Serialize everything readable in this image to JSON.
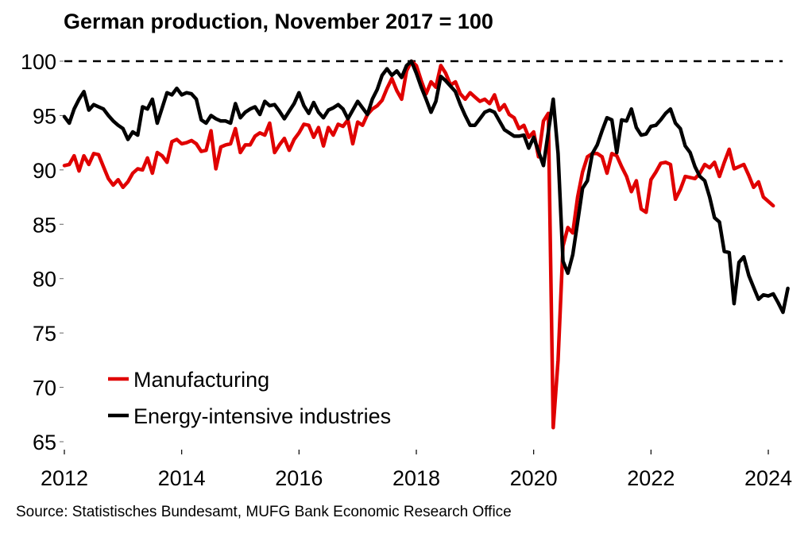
{
  "chart_data": {
    "type": "line",
    "title": "German production, November 2017 = 100",
    "source": "Source: Statistisches Bundesamt, MUFG Bank Economic Research Office",
    "xlabel": "",
    "ylabel": "",
    "x_start": "2012-01",
    "frequency": "monthly",
    "xlim": [
      2012,
      2024
    ],
    "ylim": [
      65,
      100
    ],
    "xticks": [
      "2012",
      "2014",
      "2016",
      "2018",
      "2020",
      "2022",
      "2024"
    ],
    "yticks": [
      "65",
      "70",
      "75",
      "80",
      "85",
      "90",
      "95",
      "100"
    ],
    "reference_line": {
      "value": 100,
      "style": "dashed"
    },
    "grid": false,
    "legend_position": "bottom-left",
    "series": [
      {
        "name": "Manufacturing",
        "color": "#e00000",
        "values": [
          90.4,
          90.5,
          91.3,
          89.9,
          91.3,
          90.5,
          91.5,
          91.4,
          90.3,
          89.2,
          88.6,
          89.1,
          88.4,
          88.9,
          89.7,
          90.1,
          90.0,
          91.1,
          89.7,
          91.6,
          91.3,
          90.7,
          92.6,
          92.8,
          92.4,
          92.5,
          92.7,
          92.4,
          91.7,
          91.8,
          93.6,
          90.1,
          92.1,
          92.3,
          92.4,
          93.8,
          91.6,
          92.3,
          92.3,
          93.1,
          93.4,
          93.2,
          94.3,
          91.6,
          92.3,
          92.9,
          91.8,
          92.8,
          93.4,
          94.2,
          94.1,
          93.0,
          93.9,
          92.2,
          93.9,
          93.2,
          94.2,
          94.0,
          94.6,
          92.4,
          94.4,
          94.1,
          95.1,
          95.6,
          95.9,
          96.4,
          97.5,
          98.4,
          97.3,
          96.5,
          99.1,
          100.0,
          99.6,
          98.2,
          97.0,
          98.1,
          97.6,
          99.6,
          98.9,
          97.8,
          98.1,
          97.0,
          96.5,
          97.1,
          96.7,
          96.3,
          96.5,
          96.1,
          96.9,
          95.5,
          96.0,
          95.1,
          94.8,
          93.8,
          94.1,
          93.0,
          93.5,
          91.2,
          94.5,
          95.2,
          66.3,
          72.5,
          83.0,
          84.7,
          84.2,
          87.5,
          89.8,
          91.2,
          91.5,
          91.5,
          91.2,
          89.7,
          91.5,
          91.3,
          90.3,
          89.4,
          88.0,
          89.0,
          86.4,
          86.1,
          89.1,
          89.8,
          90.6,
          90.7,
          90.5,
          87.3,
          88.2,
          89.4,
          89.3,
          89.2,
          89.7,
          90.5,
          90.2,
          90.7,
          89.4,
          90.7,
          91.9,
          90.1,
          90.3,
          90.5,
          89.5,
          88.4,
          88.9,
          87.5,
          87.1,
          86.7
        ]
      },
      {
        "name": "Energy-intensive industries",
        "color": "#000000",
        "values": [
          94.9,
          94.3,
          95.6,
          96.5,
          97.2,
          95.5,
          96.0,
          95.8,
          95.6,
          95.0,
          94.5,
          94.1,
          93.8,
          92.8,
          93.5,
          93.2,
          95.8,
          95.6,
          96.5,
          94.3,
          95.7,
          97.1,
          96.9,
          97.5,
          96.9,
          97.1,
          97.0,
          96.5,
          94.6,
          94.3,
          95.0,
          94.7,
          94.5,
          94.5,
          94.3,
          96.1,
          94.8,
          95.3,
          95.6,
          95.8,
          95.1,
          96.3,
          95.9,
          96.0,
          95.4,
          94.7,
          95.4,
          96.1,
          97.1,
          95.9,
          95.2,
          96.2,
          95.3,
          94.8,
          95.5,
          95.7,
          96.0,
          95.6,
          94.7,
          95.5,
          96.3,
          95.7,
          95.1,
          96.5,
          97.4,
          98.7,
          99.3,
          98.7,
          99.1,
          98.5,
          99.6,
          100.0,
          98.9,
          97.6,
          96.5,
          95.3,
          96.3,
          98.6,
          98.2,
          97.7,
          97.2,
          96.0,
          95.0,
          94.1,
          94.1,
          94.7,
          95.3,
          95.5,
          95.3,
          94.5,
          93.7,
          93.4,
          93.1,
          93.1,
          93.2,
          92.0,
          93.0,
          91.7,
          90.4,
          93.5,
          96.5,
          91.5,
          81.6,
          80.5,
          82.2,
          85.2,
          88.3,
          89.0,
          91.5,
          92.3,
          93.6,
          94.8,
          94.6,
          91.6,
          94.6,
          94.5,
          95.6,
          93.9,
          93.2,
          93.3,
          94.0,
          94.1,
          94.6,
          95.2,
          95.6,
          94.3,
          93.8,
          92.2,
          91.6,
          90.3,
          89.4,
          89.0,
          87.5,
          85.6,
          85.2,
          82.5,
          82.4,
          77.7,
          81.5,
          82.0,
          80.3,
          79.2,
          78.1,
          78.5,
          78.4,
          78.6,
          77.8,
          76.9,
          79.1
        ]
      }
    ]
  }
}
